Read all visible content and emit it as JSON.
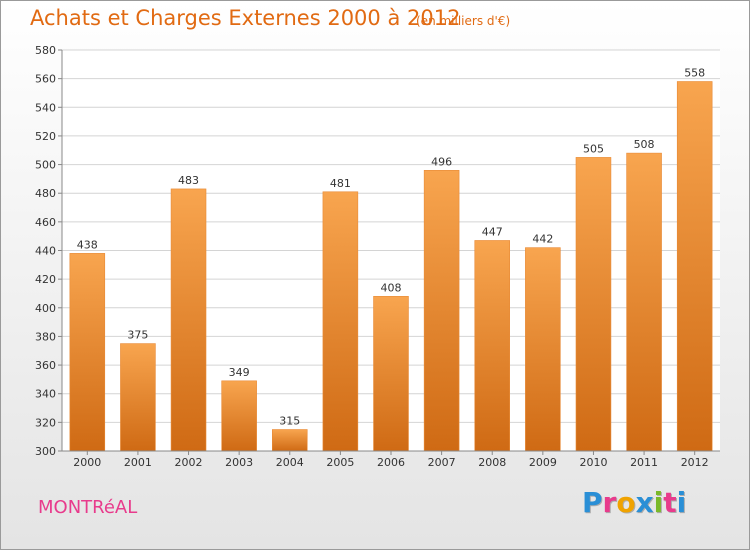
{
  "header": {
    "title": "Achats et Charges Externes 2000 à 2012",
    "subtitle": "(en milliers d'€)"
  },
  "footer": {
    "commune": "MONTRéAL",
    "logo_letters": [
      "P",
      "r",
      "o",
      "x",
      "i",
      "t",
      "i"
    ],
    "logo_colors": [
      "#2a8fd6",
      "#e83b8c",
      "#f0a300",
      "#2a8fd6",
      "#7ab929",
      "#e83b8c",
      "#2a8fd6"
    ]
  },
  "colors": {
    "bar_top": "#f8a54f",
    "bar_bottom": "#cf6a14",
    "title": "#e16a12",
    "commune": "#e83b8c",
    "grid": "#d4d4d4"
  },
  "chart_data": {
    "type": "bar",
    "title": "Achats et Charges Externes 2000 à 2012",
    "subtitle": "(en milliers d'€)",
    "xlabel": "",
    "ylabel": "",
    "categories": [
      "2000",
      "2001",
      "2002",
      "2003",
      "2004",
      "2005",
      "2006",
      "2007",
      "2008",
      "2009",
      "2010",
      "2011",
      "2012"
    ],
    "values": [
      438,
      375,
      483,
      349,
      315,
      481,
      408,
      496,
      447,
      442,
      505,
      508,
      558
    ],
    "ylim": [
      300,
      580
    ],
    "yticks": [
      300,
      320,
      340,
      360,
      380,
      400,
      420,
      440,
      460,
      480,
      500,
      520,
      540,
      560,
      580
    ],
    "grid": true,
    "legend": "none"
  }
}
